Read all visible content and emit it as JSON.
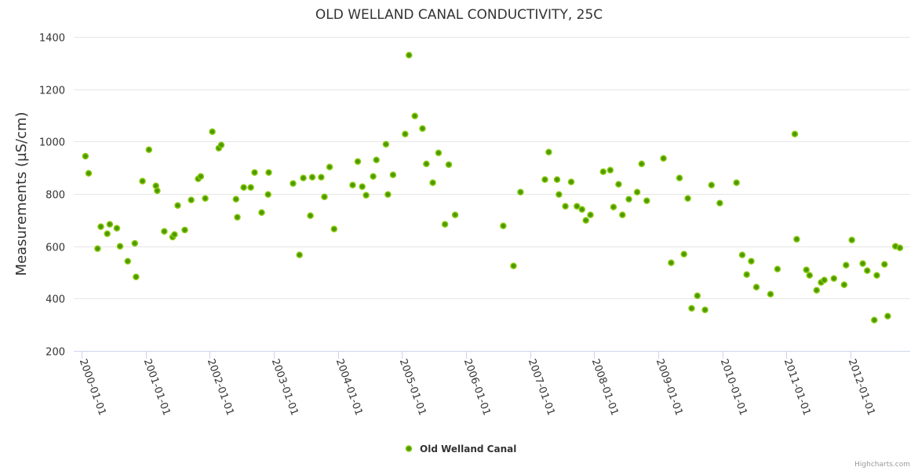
{
  "chart_data": {
    "type": "scatter",
    "title": "OLD WELLAND CANAL CONDUCTIVITY, 25C",
    "xlabel": "",
    "ylabel": "Measurements (µS/cm)",
    "ylim": [
      200,
      1400
    ],
    "yticks": [
      200,
      400,
      600,
      800,
      1000,
      1200,
      1400
    ],
    "xlim": [
      2000.0,
      2012.93
    ],
    "xticks": [
      {
        "value": 2000,
        "label": "2000-01-01"
      },
      {
        "value": 2001,
        "label": "2001-01-01"
      },
      {
        "value": 2002,
        "label": "2002-01-01"
      },
      {
        "value": 2003,
        "label": "2003-01-01"
      },
      {
        "value": 2004,
        "label": "2004-01-01"
      },
      {
        "value": 2005,
        "label": "2005-01-01"
      },
      {
        "value": 2006,
        "label": "2006-01-01"
      },
      {
        "value": 2007,
        "label": "2007-01-01"
      },
      {
        "value": 2008,
        "label": "2008-01-01"
      },
      {
        "value": 2009,
        "label": "2009-01-01"
      },
      {
        "value": 2010,
        "label": "2010-01-01"
      },
      {
        "value": 2011,
        "label": "2011-01-01"
      },
      {
        "value": 2012,
        "label": "2012-01-01"
      }
    ],
    "grid": true,
    "legend_position": "bottom-center",
    "series": [
      {
        "name": "Old Welland Canal",
        "color": "#4c9a00",
        "points": [
          [
            2000.06,
            944
          ],
          [
            2000.11,
            879
          ],
          [
            2000.25,
            591
          ],
          [
            2000.3,
            675
          ],
          [
            2000.4,
            648
          ],
          [
            2000.44,
            684
          ],
          [
            2000.55,
            669
          ],
          [
            2000.6,
            600
          ],
          [
            2000.72,
            543
          ],
          [
            2000.83,
            611
          ],
          [
            2000.85,
            483
          ],
          [
            2000.95,
            849
          ],
          [
            2001.05,
            969
          ],
          [
            2001.16,
            831
          ],
          [
            2001.18,
            812
          ],
          [
            2001.29,
            657
          ],
          [
            2001.42,
            635
          ],
          [
            2001.45,
            645
          ],
          [
            2001.5,
            756
          ],
          [
            2001.61,
            662
          ],
          [
            2001.71,
            777
          ],
          [
            2001.82,
            858
          ],
          [
            2001.86,
            867
          ],
          [
            2001.93,
            783
          ],
          [
            2002.04,
            1038
          ],
          [
            2002.14,
            975
          ],
          [
            2002.18,
            987
          ],
          [
            2002.41,
            780
          ],
          [
            2002.43,
            711
          ],
          [
            2002.53,
            825
          ],
          [
            2002.64,
            825
          ],
          [
            2002.7,
            882
          ],
          [
            2002.81,
            729
          ],
          [
            2002.91,
            798
          ],
          [
            2002.92,
            882
          ],
          [
            2003.3,
            840
          ],
          [
            2003.4,
            567
          ],
          [
            2003.46,
            861
          ],
          [
            2003.57,
            717
          ],
          [
            2003.6,
            864
          ],
          [
            2003.74,
            864
          ],
          [
            2003.79,
            789
          ],
          [
            2003.87,
            903
          ],
          [
            2003.94,
            666
          ],
          [
            2004.23,
            834
          ],
          [
            2004.31,
            924
          ],
          [
            2004.38,
            828
          ],
          [
            2004.44,
            795
          ],
          [
            2004.55,
            867
          ],
          [
            2004.6,
            930
          ],
          [
            2004.75,
            990
          ],
          [
            2004.78,
            798
          ],
          [
            2004.86,
            873
          ],
          [
            2005.05,
            1029
          ],
          [
            2005.11,
            1330
          ],
          [
            2005.2,
            1098
          ],
          [
            2005.32,
            1050
          ],
          [
            2005.38,
            915
          ],
          [
            2005.48,
            843
          ],
          [
            2005.57,
            957
          ],
          [
            2005.67,
            684
          ],
          [
            2005.73,
            912
          ],
          [
            2005.83,
            720
          ],
          [
            2006.58,
            678
          ],
          [
            2006.74,
            525
          ],
          [
            2006.85,
            807
          ],
          [
            2007.23,
            855
          ],
          [
            2007.29,
            960
          ],
          [
            2007.42,
            855
          ],
          [
            2007.45,
            798
          ],
          [
            2007.55,
            753
          ],
          [
            2007.64,
            846
          ],
          [
            2007.73,
            753
          ],
          [
            2007.81,
            741
          ],
          [
            2007.87,
            699
          ],
          [
            2007.94,
            720
          ],
          [
            2008.14,
            885
          ],
          [
            2008.25,
            891
          ],
          [
            2008.3,
            750
          ],
          [
            2008.38,
            837
          ],
          [
            2008.44,
            720
          ],
          [
            2008.54,
            780
          ],
          [
            2008.67,
            807
          ],
          [
            2008.74,
            915
          ],
          [
            2008.82,
            774
          ],
          [
            2009.08,
            936
          ],
          [
            2009.2,
            537
          ],
          [
            2009.33,
            861
          ],
          [
            2009.4,
            570
          ],
          [
            2009.46,
            783
          ],
          [
            2009.52,
            363
          ],
          [
            2009.61,
            411
          ],
          [
            2009.73,
            357
          ],
          [
            2009.83,
            834
          ],
          [
            2009.96,
            765
          ],
          [
            2010.22,
            843
          ],
          [
            2010.31,
            567
          ],
          [
            2010.38,
            492
          ],
          [
            2010.45,
            543
          ],
          [
            2010.53,
            444
          ],
          [
            2010.75,
            417
          ],
          [
            2010.86,
            513
          ],
          [
            2011.13,
            1029
          ],
          [
            2011.16,
            627
          ],
          [
            2011.31,
            510
          ],
          [
            2011.36,
            489
          ],
          [
            2011.47,
            432
          ],
          [
            2011.54,
            462
          ],
          [
            2011.59,
            471
          ],
          [
            2011.74,
            477
          ],
          [
            2011.9,
            453
          ],
          [
            2011.93,
            528
          ],
          [
            2012.02,
            624
          ],
          [
            2012.19,
            534
          ],
          [
            2012.26,
            507
          ],
          [
            2012.37,
            318
          ],
          [
            2012.41,
            489
          ],
          [
            2012.53,
            531
          ],
          [
            2012.58,
            333
          ],
          [
            2012.7,
            600
          ],
          [
            2012.77,
            594
          ]
        ]
      }
    ]
  },
  "legend": {
    "label": "Old Welland Canal"
  },
  "credits": "Highcharts.com"
}
